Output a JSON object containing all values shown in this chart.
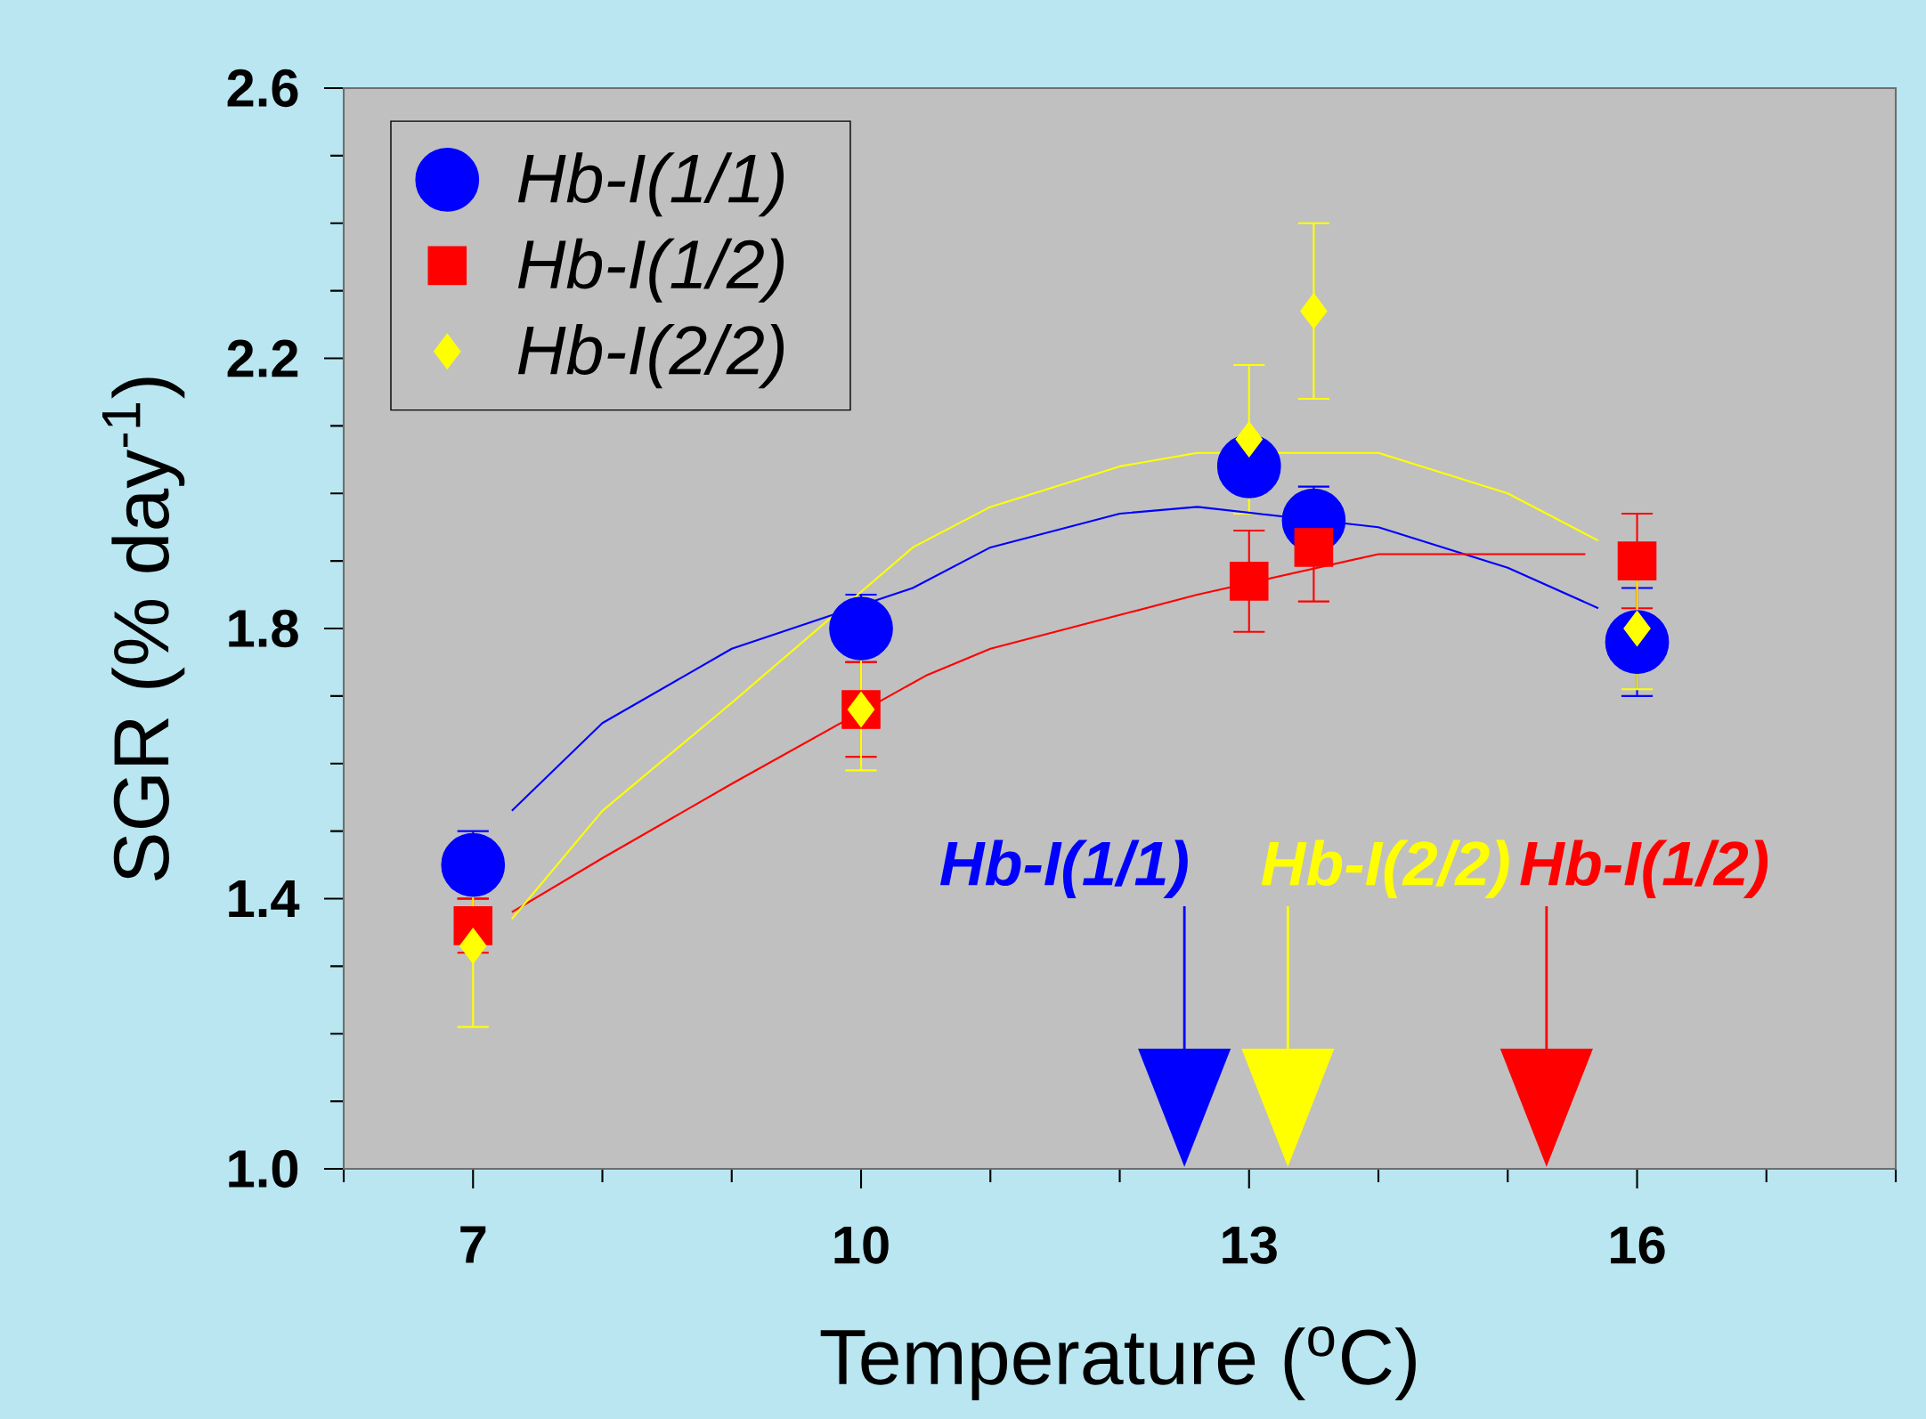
{
  "chart_data": {
    "type": "scatter",
    "xlabel": "Temperature ($^{o}$C)",
    "ylabel": "SGR (% day$^{-1}$)",
    "xlim": [
      6,
      18
    ],
    "ylim": [
      1.0,
      2.6
    ],
    "xticks": [
      {
        "value": 6,
        "label": null
      },
      7,
      {
        "value": 8,
        "label": null
      },
      {
        "value": 9,
        "label": null
      },
      10,
      {
        "value": 11,
        "label": null
      },
      {
        "value": 12,
        "label": null
      },
      13,
      {
        "value": 14,
        "label": null
      },
      {
        "value": 15,
        "label": null
      },
      16,
      {
        "value": 17,
        "label": null
      },
      {
        "value": 18,
        "label": null
      }
    ],
    "yticks": [
      {
        "value": 1.0,
        "label": "1.0"
      },
      {
        "value": 1.1,
        "label": null
      },
      {
        "value": 1.2,
        "label": null
      },
      {
        "value": 1.3,
        "label": null
      },
      1.4,
      {
        "value": 1.5,
        "label": null
      },
      {
        "value": 1.6,
        "label": null
      },
      {
        "value": 1.7,
        "label": null
      },
      1.8,
      {
        "value": 1.9,
        "label": null
      },
      {
        "value": 2.0,
        "label": null
      },
      {
        "value": 2.1,
        "label": null
      },
      2.2,
      {
        "value": 2.3,
        "label": null
      },
      {
        "value": 2.4,
        "label": null
      },
      {
        "value": 2.5,
        "label": null
      },
      2.6
    ],
    "legend": "top left",
    "series": [
      {
        "name": "Hb-I(1/1)",
        "color": "#0000ff",
        "marker": "circle",
        "x": [
          7,
          10,
          13,
          13.5,
          16
        ],
        "values": [
          1.45,
          1.8,
          2.04,
          1.96,
          1.78
        ],
        "errors": [
          0.05,
          0.05,
          0.03,
          0.05,
          0.08
        ]
      },
      {
        "name": "Hb-I(1/2)",
        "color": "#ff0000",
        "marker": "square",
        "x": [
          7,
          10,
          13,
          13.5,
          16
        ],
        "values": [
          1.36,
          1.68,
          1.87,
          1.92,
          1.9
        ],
        "errors": [
          0.04,
          0.07,
          0.075,
          0.08,
          0.07
        ]
      },
      {
        "name": "Hb-I(2/2)",
        "color": "#ffff00",
        "marker": "diamond",
        "x": [
          7,
          10,
          13,
          13.5,
          16
        ],
        "values": [
          1.33,
          1.68,
          2.08,
          2.27,
          1.8
        ],
        "errors": [
          0.12,
          0.09,
          0.11,
          0.13,
          0.09
        ]
      },
      {
        "type": "line",
        "color": "#0000ff",
        "x": [
          7.3,
          8,
          9,
          10.4,
          11,
          12,
          12.6,
          14,
          15,
          15.7
        ],
        "values": [
          1.53,
          1.66,
          1.77,
          1.86,
          1.92,
          1.97,
          1.98,
          1.95,
          1.89,
          1.83
        ]
      },
      {
        "type": "line",
        "color": "#ff0000",
        "x": [
          7.3,
          8,
          9,
          10.5,
          11,
          12,
          12.6,
          14,
          14.5,
          15.6
        ],
        "values": [
          1.38,
          1.46,
          1.57,
          1.73,
          1.77,
          1.82,
          1.85,
          1.91,
          1.91,
          1.91
        ]
      },
      {
        "type": "line",
        "color": "#ffff00",
        "x": [
          7.3,
          8,
          9,
          10.4,
          11,
          12,
          12.6,
          14,
          15,
          15.7
        ],
        "values": [
          1.37,
          1.53,
          1.69,
          1.92,
          1.98,
          2.04,
          2.06,
          2.06,
          2.0,
          1.93
        ]
      }
    ],
    "ref_lines": [
      {
        "axis": "x",
        "value": 12.5,
        "label": "Hb-I(1/1)",
        "color": "#0000ff"
      },
      {
        "axis": "x",
        "value": 13.3,
        "label": "Hb-I(2/2)",
        "color": "#ffff00"
      },
      {
        "axis": "x",
        "value": 15.3,
        "label": "Hb-I(1/2)",
        "color": "#ff0000"
      }
    ]
  }
}
